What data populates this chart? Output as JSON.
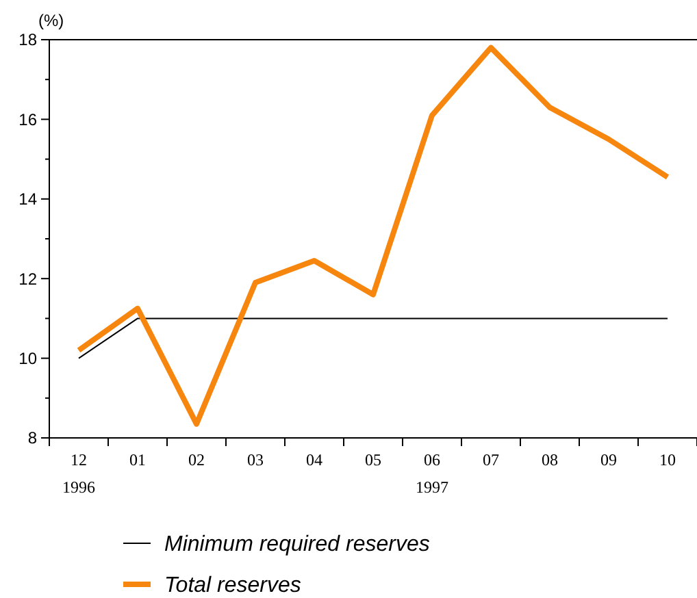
{
  "chart_data": {
    "type": "line",
    "ylabel": "(%)",
    "categories": [
      "12",
      "01",
      "02",
      "03",
      "04",
      "05",
      "06",
      "07",
      "08",
      "09",
      "10"
    ],
    "series": [
      {
        "name": "Minimum required reserves",
        "color": "#000000",
        "values": [
          10.0,
          11.0,
          11.0,
          11.0,
          11.0,
          11.0,
          11.0,
          11.0,
          11.0,
          11.0,
          11.0
        ]
      },
      {
        "name": "Total reserves",
        "color": "#f7860f",
        "values": [
          10.2,
          11.25,
          8.35,
          11.9,
          12.45,
          11.6,
          16.1,
          17.8,
          16.3,
          15.5,
          14.55
        ]
      }
    ],
    "ylim": [
      8,
      18
    ],
    "yticks": [
      8,
      {
        "value": 9,
        "label": null
      },
      10,
      {
        "value": 11,
        "label": null
      },
      12,
      {
        "value": 13,
        "label": null
      },
      14,
      {
        "value": 15,
        "label": null
      },
      16,
      {
        "value": 17,
        "label": null
      },
      18
    ],
    "annotations": [
      "1996",
      "1997"
    ],
    "legend": "bottom",
    "grid": false,
    "marker": "none",
    "line_style": "solid"
  }
}
